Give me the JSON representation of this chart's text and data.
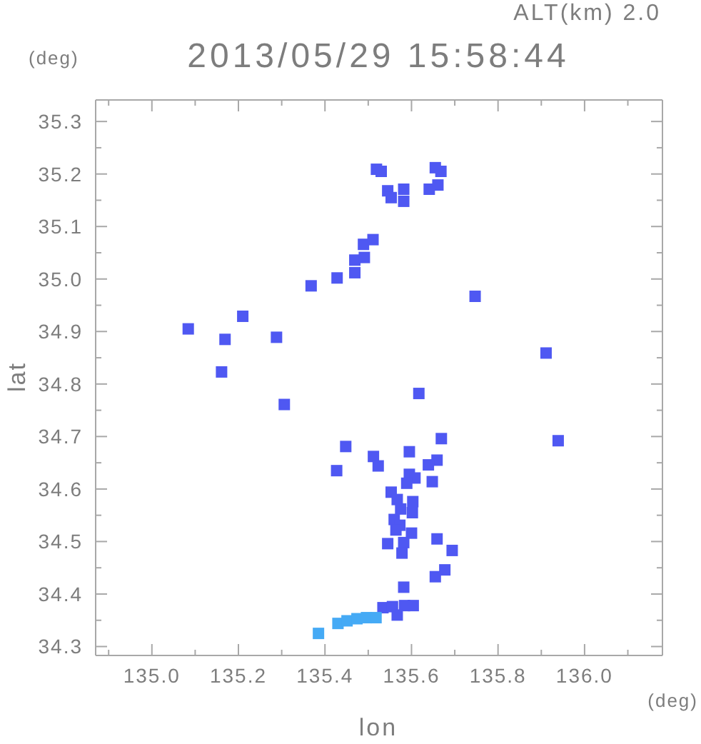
{
  "chart_data": {
    "type": "scatter",
    "title": "2013/05/29 15:58:44",
    "subtitle": "ALT(km) 2.0",
    "xlabel": "lon",
    "ylabel": "lat",
    "annotations": [
      "(deg)",
      "(deg)"
    ],
    "marker": "square",
    "xlim": [
      134.87,
      136.18
    ],
    "ylim": [
      34.283,
      35.341
    ],
    "xticks": [
      {
        "value": 134.9,
        "label": null
      },
      {
        "value": 135.0,
        "label": "135.0"
      },
      {
        "value": 135.1,
        "label": null
      },
      {
        "value": 135.2,
        "label": "135.2"
      },
      {
        "value": 135.3,
        "label": null
      },
      {
        "value": 135.4,
        "label": "135.4"
      },
      {
        "value": 135.5,
        "label": null
      },
      {
        "value": 135.6,
        "label": "135.6"
      },
      {
        "value": 135.7,
        "label": null
      },
      {
        "value": 135.8,
        "label": "135.8"
      },
      {
        "value": 135.9,
        "label": null
      },
      {
        "value": 136.0,
        "label": "136.0"
      },
      {
        "value": 136.1,
        "label": null
      }
    ],
    "yticks": [
      34.3,
      {
        "value": 34.35,
        "label": null
      },
      34.4,
      {
        "value": 34.45,
        "label": null
      },
      34.5,
      {
        "value": 34.55,
        "label": null
      },
      34.6,
      {
        "value": 34.65,
        "label": null
      },
      34.7,
      {
        "value": 34.75,
        "label": null
      },
      34.8,
      {
        "value": 34.85,
        "label": null
      },
      34.9,
      {
        "value": 34.95,
        "label": null
      },
      {
        "value": 35.0,
        "label": "35.0"
      },
      {
        "value": 35.05,
        "label": null
      },
      35.1,
      {
        "value": 35.15,
        "label": null
      },
      35.2,
      {
        "value": 35.25,
        "label": null
      },
      35.3
    ],
    "series": [
      {
        "color": "#4f58f2",
        "x": [
          135.519,
          135.53,
          135.545,
          135.553,
          135.582,
          135.582,
          135.655,
          135.668,
          135.661,
          135.641,
          135.469,
          135.491,
          135.469,
          135.428,
          135.489,
          135.511,
          135.368,
          135.084,
          135.169,
          135.288,
          135.21,
          135.161,
          135.747,
          135.911,
          135.939,
          135.617,
          135.669,
          135.306,
          135.427,
          135.448,
          135.512,
          135.523,
          135.595,
          135.659,
          135.639,
          135.595,
          135.608,
          135.589,
          135.648,
          135.553,
          135.567,
          135.603,
          135.575,
          135.602,
          135.56,
          135.573,
          135.564,
          135.6,
          135.659,
          135.545,
          135.582,
          135.578,
          135.694,
          135.677,
          135.655,
          135.582,
          135.534,
          135.556,
          135.584,
          135.604,
          135.567
        ],
        "values": [
          35.209,
          35.205,
          35.168,
          35.155,
          35.171,
          35.148,
          35.212,
          35.205,
          35.179,
          35.171,
          35.036,
          35.041,
          35.012,
          35.002,
          35.066,
          35.075,
          34.987,
          34.905,
          34.885,
          34.889,
          34.929,
          34.823,
          34.967,
          34.859,
          34.692,
          34.782,
          34.696,
          34.761,
          34.635,
          34.681,
          34.662,
          34.644,
          34.671,
          34.655,
          34.646,
          34.628,
          34.621,
          34.611,
          34.614,
          34.594,
          34.58,
          34.576,
          34.562,
          34.555,
          34.542,
          34.531,
          34.522,
          34.516,
          34.505,
          34.496,
          34.498,
          34.478,
          34.483,
          34.446,
          34.433,
          34.413,
          34.374,
          34.376,
          34.378,
          34.378,
          34.36
        ]
      },
      {
        "color": "#45aaf5",
        "x": [
          135.385,
          135.43,
          135.451,
          135.474,
          135.496,
          135.518
        ],
        "values": [
          34.325,
          34.344,
          34.349,
          34.353,
          34.355,
          34.355
        ]
      }
    ]
  }
}
